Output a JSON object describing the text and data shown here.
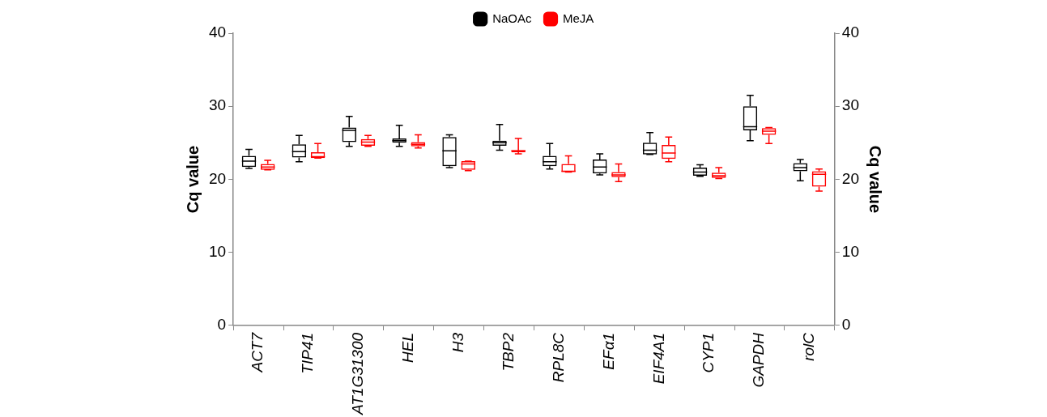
{
  "chart_data": {
    "type": "box",
    "ylabel": "Cq value",
    "y2label": "Cq value",
    "categories": [
      "ACT7",
      "TIP41",
      "AT1G31300",
      "HEL",
      "H3",
      "TBP2",
      "RPL8C",
      "EFα1",
      "EIF4A1",
      "CYP1",
      "GAPDH",
      "rolC"
    ],
    "ylim": [
      0,
      40
    ],
    "yticks": [
      0,
      10,
      20,
      30,
      40
    ],
    "y2lim": [
      0,
      40
    ],
    "y2ticks": [
      0,
      10,
      20,
      30,
      40
    ],
    "grid": false,
    "legend": "top",
    "series": [
      {
        "name": "NaOAc",
        "color": "#000000",
        "boxes": [
          {
            "low": 21.5,
            "q1": 21.7,
            "median": 22.5,
            "q3": 23.2,
            "high": 24.1
          },
          {
            "low": 22.4,
            "q1": 23.0,
            "median": 23.8,
            "q3": 24.8,
            "high": 26.0
          },
          {
            "low": 24.5,
            "q1": 25.1,
            "median": 26.7,
            "q3": 27.1,
            "high": 28.6
          },
          {
            "low": 24.5,
            "q1": 25.0,
            "median": 25.3,
            "q3": 25.6,
            "high": 27.4
          },
          {
            "low": 21.6,
            "q1": 21.8,
            "median": 23.9,
            "q3": 25.8,
            "high": 26.1
          },
          {
            "low": 24.0,
            "q1": 24.6,
            "median": 25.0,
            "q3": 25.3,
            "high": 27.5
          },
          {
            "low": 21.4,
            "q1": 21.8,
            "median": 22.4,
            "q3": 23.2,
            "high": 24.9
          },
          {
            "low": 20.6,
            "q1": 20.8,
            "median": 21.7,
            "q3": 22.7,
            "high": 23.5
          },
          {
            "low": 23.4,
            "q1": 23.4,
            "median": 24.0,
            "q3": 25.0,
            "high": 26.4
          },
          {
            "low": 20.4,
            "q1": 20.5,
            "median": 21.0,
            "q3": 21.6,
            "high": 22.0
          },
          {
            "low": 25.3,
            "q1": 26.7,
            "median": 27.2,
            "q3": 30.0,
            "high": 31.5
          },
          {
            "low": 19.8,
            "q1": 21.1,
            "median": 21.6,
            "q3": 22.2,
            "high": 22.7
          }
        ]
      },
      {
        "name": "MeJA",
        "color": "#ff0000",
        "boxes": [
          {
            "low": 21.3,
            "q1": 21.3,
            "median": 21.7,
            "q3": 22.1,
            "high": 22.6
          },
          {
            "low": 22.9,
            "q1": 22.9,
            "median": 23.1,
            "q3": 23.7,
            "high": 24.9
          },
          {
            "low": 24.5,
            "q1": 24.6,
            "median": 25.1,
            "q3": 25.5,
            "high": 26.0
          },
          {
            "low": 24.3,
            "q1": 24.5,
            "median": 24.8,
            "q3": 25.1,
            "high": 26.1
          },
          {
            "low": 21.2,
            "q1": 21.3,
            "median": 22.1,
            "q3": 22.5,
            "high": 22.5
          },
          {
            "low": 23.5,
            "q1": 23.7,
            "median": 23.9,
            "q3": 24.0,
            "high": 25.6
          },
          {
            "low": 21.0,
            "q1": 21.0,
            "median": 21.1,
            "q3": 22.1,
            "high": 23.2
          },
          {
            "low": 19.7,
            "q1": 20.3,
            "median": 20.6,
            "q3": 21.0,
            "high": 22.1
          },
          {
            "low": 22.4,
            "q1": 22.8,
            "median": 23.6,
            "q3": 24.7,
            "high": 25.8
          },
          {
            "low": 20.1,
            "q1": 20.2,
            "median": 20.5,
            "q3": 20.9,
            "high": 21.6
          },
          {
            "low": 24.9,
            "q1": 26.1,
            "median": 26.6,
            "q3": 27.0,
            "high": 27.1
          },
          {
            "low": 18.4,
            "q1": 19.0,
            "median": 20.7,
            "q3": 21.1,
            "high": 21.4
          }
        ]
      }
    ]
  }
}
